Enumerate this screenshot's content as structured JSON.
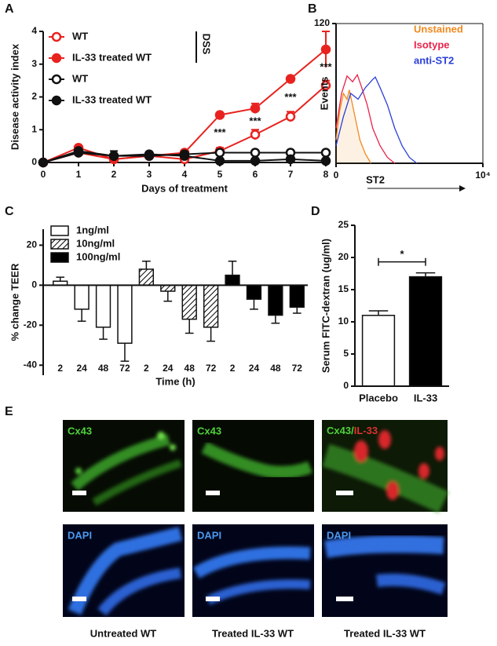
{
  "panel_labels": [
    "A",
    "B",
    "C",
    "D",
    "E"
  ],
  "chart_data": [
    {
      "type": "line",
      "xlabel": "Days of treatment",
      "ylabel": "Disease activity index",
      "group_label": "DSS",
      "x": [
        0,
        1,
        2,
        3,
        4,
        5,
        6,
        7,
        8
      ],
      "xlim": [
        0,
        8
      ],
      "xticks": [
        0,
        1,
        2,
        3,
        4,
        5,
        6,
        7,
        8
      ],
      "ylim": [
        0,
        4
      ],
      "yticks": [
        0,
        1,
        2,
        3,
        4
      ],
      "series": [
        {
          "name": "WT",
          "color": "#e8231f",
          "marker": "open",
          "values": [
            0,
            0.3,
            0.1,
            0.2,
            0.1,
            0.35,
            0.85,
            1.4,
            2.35
          ],
          "errors": [
            0,
            0.05,
            0.05,
            0.05,
            0.05,
            0.1,
            0.15,
            0.15,
            0.15
          ]
        },
        {
          "name": "IL-33 treated WT",
          "color": "#e8231f",
          "marker": "filled",
          "values": [
            0,
            0.45,
            0.1,
            0.2,
            0.3,
            1.45,
            1.65,
            2.55,
            3.45
          ],
          "errors": [
            0,
            0.05,
            0.05,
            0.05,
            0.05,
            0.05,
            0.15,
            0.05,
            0.55
          ]
        },
        {
          "name": "WT",
          "color": "#111111",
          "marker": "open",
          "values": [
            0,
            0.3,
            0.2,
            0.2,
            0.25,
            0.3,
            0.3,
            0.3,
            0.3
          ]
        },
        {
          "name": "IL-33 treated WT",
          "color": "#111111",
          "marker": "filled",
          "values": [
            0,
            0.35,
            0.2,
            0.25,
            0.2,
            0.05,
            0.05,
            0.1,
            0.05
          ],
          "errors": [
            0,
            0.05,
            0.15,
            0.05,
            0.05,
            0.05,
            0.05,
            0.05,
            0.05
          ]
        }
      ],
      "annotations": [
        {
          "text": "***",
          "x": 5
        },
        {
          "text": "***",
          "x": 6
        },
        {
          "text": "***",
          "x": 7
        },
        {
          "text": "***",
          "x": 8
        }
      ]
    },
    {
      "type": "line",
      "xlabel": "ST2",
      "ylabel": "Events",
      "xlim": [
        0,
        4
      ],
      "xticks": [
        0,
        {
          "value": 4,
          "label": "10⁴"
        }
      ],
      "ylim": [
        0,
        120
      ],
      "yticks": [
        120
      ],
      "series": [
        {
          "name": "Unstained",
          "color": "#f0891f",
          "shaded": true,
          "x": [
            0,
            0.1,
            0.2,
            0.3,
            0.36,
            0.45,
            0.55,
            0.65,
            0.8,
            0.95
          ],
          "values": [
            20,
            45,
            60,
            55,
            63,
            50,
            35,
            20,
            8,
            0
          ]
        },
        {
          "name": "Isotype",
          "color": "#e8234a",
          "x": [
            0,
            0.15,
            0.3,
            0.45,
            0.58,
            0.7,
            0.85,
            1.0,
            1.2,
            1.4,
            1.6
          ],
          "values": [
            30,
            60,
            75,
            70,
            76,
            65,
            50,
            30,
            15,
            5,
            0
          ]
        },
        {
          "name": "anti-ST2",
          "color": "#2a3fd6",
          "x": [
            0,
            0.2,
            0.4,
            0.6,
            0.8,
            1.0,
            1.07,
            1.2,
            1.4,
            1.6,
            1.8,
            2.0,
            2.2
          ],
          "values": [
            15,
            40,
            60,
            55,
            65,
            72,
            74,
            65,
            50,
            30,
            15,
            5,
            0
          ]
        }
      ]
    },
    {
      "type": "bar",
      "xlabel": "Time (h)",
      "ylabel": "% change TEER",
      "categories": [
        "2",
        "24",
        "48",
        "72"
      ],
      "ylim": [
        -45,
        28
      ],
      "yticks": [
        -40,
        -20,
        0,
        20
      ],
      "series": [
        {
          "name": "1ng/ml",
          "color": "#ffffff",
          "values": [
            2,
            -12,
            -21,
            -29
          ],
          "errors": [
            2,
            6,
            6,
            9
          ]
        },
        {
          "name": "10ng/ml",
          "color": "#ffffff",
          "pattern": "hatch",
          "values": [
            8,
            -3,
            -17,
            -21
          ],
          "errors": [
            4,
            5,
            7,
            7
          ]
        },
        {
          "name": "100ng/ml",
          "color": "#000000",
          "values": [
            5,
            -7,
            -15,
            -11
          ],
          "errors": [
            7,
            5,
            4,
            3
          ]
        }
      ]
    },
    {
      "type": "bar",
      "ylabel": "Serum FITC-dextran (ug/ml)",
      "categories": [
        "Placebo",
        "IL-33"
      ],
      "values": [
        11,
        17
      ],
      "errors": [
        0.7,
        0.6
      ],
      "colors": [
        "#ffffff",
        "#000000"
      ],
      "ylim": [
        0,
        25
      ],
      "yticks": [
        0,
        5,
        10,
        15,
        20,
        25
      ],
      "annotations": [
        {
          "text": "*"
        }
      ]
    }
  ],
  "panel_e": {
    "row1_labels": [
      "Cx43",
      "Cx43",
      [
        "Cx43/",
        "IL-33"
      ]
    ],
    "row2_labels": [
      "DAPI",
      "DAPI",
      "DAPI"
    ],
    "captions": [
      "Untreated WT",
      "Treated IL-33 WT",
      "Treated IL-33 WT"
    ]
  }
}
